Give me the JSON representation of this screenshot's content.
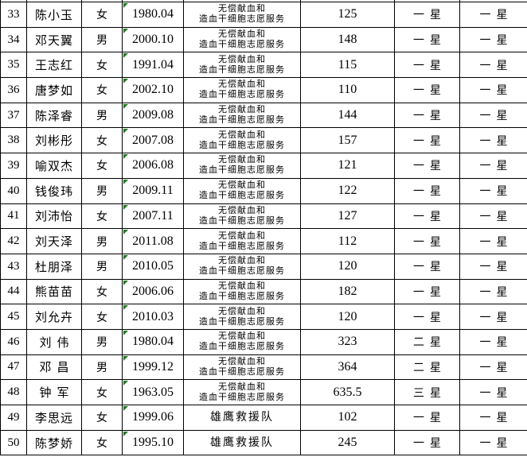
{
  "colors": {
    "border": "#000000",
    "background": "#ffffff",
    "text": "#000000",
    "error_triangle": "#1f7a1f"
  },
  "icons": {
    "date_cell_marker": "green-error-indicator-triangle"
  },
  "rows": [
    {
      "no": "33",
      "name": "陈小玉",
      "gender": "女",
      "date": "1980.04",
      "service": [
        "无偿献血和",
        "造血干细胞志愿服务"
      ],
      "hours": "125",
      "star_a": "一星",
      "star_b": "一星"
    },
    {
      "no": "34",
      "name": "邓天翼",
      "gender": "男",
      "date": "2000.10",
      "service": [
        "无偿献血和",
        "造血干细胞志愿服务"
      ],
      "hours": "148",
      "star_a": "一星",
      "star_b": "一星"
    },
    {
      "no": "35",
      "name": "王志红",
      "gender": "女",
      "date": "1991.04",
      "service": [
        "无偿献血和",
        "造血干细胞志愿服务"
      ],
      "hours": "115",
      "star_a": "一星",
      "star_b": "一星"
    },
    {
      "no": "36",
      "name": "唐梦如",
      "gender": "女",
      "date": "2002.10",
      "service": [
        "无偿献血和",
        "造血干细胞志愿服务"
      ],
      "hours": "110",
      "star_a": "一星",
      "star_b": "一星"
    },
    {
      "no": "37",
      "name": "陈泽睿",
      "gender": "男",
      "date": "2009.08",
      "service": [
        "无偿献血和",
        "造血干细胞志愿服务"
      ],
      "hours": "144",
      "star_a": "一星",
      "star_b": "一星"
    },
    {
      "no": "38",
      "name": "刘彬彤",
      "gender": "女",
      "date": "2007.08",
      "service": [
        "无偿献血和",
        "造血干细胞志愿服务"
      ],
      "hours": "157",
      "star_a": "一星",
      "star_b": "一星"
    },
    {
      "no": "39",
      "name": "喻双杰",
      "gender": "女",
      "date": "2006.08",
      "service": [
        "无偿献血和",
        "造血干细胞志愿服务"
      ],
      "hours": "121",
      "star_a": "一星",
      "star_b": "一星"
    },
    {
      "no": "40",
      "name": "钱俊玮",
      "gender": "男",
      "date": "2009.11",
      "service": [
        "无偿献血和",
        "造血干细胞志愿服务"
      ],
      "hours": "122",
      "star_a": "一星",
      "star_b": "一星"
    },
    {
      "no": "41",
      "name": "刘沛怡",
      "gender": "女",
      "date": "2007.11",
      "service": [
        "无偿献血和",
        "造血干细胞志愿服务"
      ],
      "hours": "127",
      "star_a": "一星",
      "star_b": "一星"
    },
    {
      "no": "42",
      "name": "刘天泽",
      "gender": "男",
      "date": "2011.08",
      "service": [
        "无偿献血和",
        "造血干细胞志愿服务"
      ],
      "hours": "112",
      "star_a": "一星",
      "star_b": "一星"
    },
    {
      "no": "43",
      "name": "杜朋泽",
      "gender": "男",
      "date": "2010.05",
      "service": [
        "无偿献血和",
        "造血干细胞志愿服务"
      ],
      "hours": "120",
      "star_a": "一星",
      "star_b": "一星"
    },
    {
      "no": "44",
      "name": "熊苗苗",
      "gender": "女",
      "date": "2006.06",
      "service": [
        "无偿献血和",
        "造血干细胞志愿服务"
      ],
      "hours": "182",
      "star_a": "一星",
      "star_b": "一星"
    },
    {
      "no": "45",
      "name": "刘允卉",
      "gender": "女",
      "date": "2010.03",
      "service": [
        "无偿献血和",
        "造血干细胞志愿服务"
      ],
      "hours": "120",
      "star_a": "一星",
      "star_b": "一星"
    },
    {
      "no": "46",
      "name": "刘伟",
      "gender": "男",
      "date": "1980.04",
      "service": [
        "无偿献血和",
        "造血干细胞志愿服务"
      ],
      "hours": "323",
      "star_a": "二星",
      "star_b": "一星"
    },
    {
      "no": "47",
      "name": "邓昌",
      "gender": "男",
      "date": "1999.12",
      "service": [
        "无偿献血和",
        "造血干细胞志愿服务"
      ],
      "hours": "364",
      "star_a": "二星",
      "star_b": "一星"
    },
    {
      "no": "48",
      "name": "钟军",
      "gender": "女",
      "date": "1963.05",
      "service": [
        "无偿献血和",
        "造血干细胞志愿服务"
      ],
      "hours": "635.5",
      "star_a": "三星",
      "star_b": "一星"
    },
    {
      "no": "49",
      "name": "李思远",
      "gender": "女",
      "date": "1999.06",
      "service": [
        "雄鹰救援队"
      ],
      "hours": "102",
      "star_a": "一星",
      "star_b": "一星"
    },
    {
      "no": "50",
      "name": "陈梦娇",
      "gender": "女",
      "date": "1995.10",
      "service": [
        "雄鹰救援队"
      ],
      "hours": "245",
      "star_a": "一星",
      "star_b": "一星"
    }
  ]
}
